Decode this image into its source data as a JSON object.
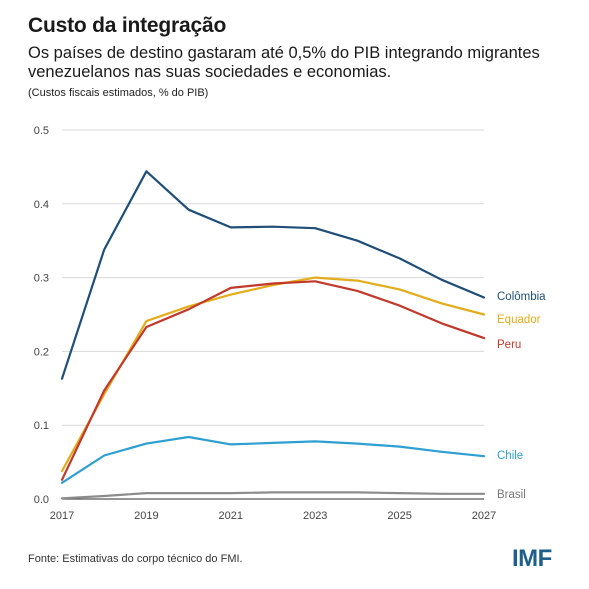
{
  "header": {
    "title": "Custo da integração",
    "subtitle": "Os países de destino gastaram até 0,5% do PIB integrando migrantes venezuelanos nas suas sociedades e economias.",
    "note": "(Custos fiscais estimados, % do PIB)"
  },
  "footer": {
    "source": "Fonte: Estimativas do corpo técnico do FMI.",
    "logo": "IMF"
  },
  "chart_data": {
    "type": "line",
    "x": [
      2017,
      2018,
      2019,
      2020,
      2021,
      2022,
      2023,
      2024,
      2025,
      2026,
      2027
    ],
    "xticks": [
      "2017",
      "2019",
      "2021",
      "2023",
      "2025",
      "2027"
    ],
    "yticks": [
      "0.0",
      "0.1",
      "0.2",
      "0.3",
      "0.4",
      "0.5"
    ],
    "ylim": [
      0,
      0.5
    ],
    "grid": true,
    "series": [
      {
        "name": "Colômbia",
        "color": "#1f4e79",
        "values": [
          0.163,
          0.338,
          0.444,
          0.392,
          0.368,
          0.369,
          0.367,
          0.35,
          0.326,
          0.297,
          0.273
        ]
      },
      {
        "name": "Equador",
        "color": "#e3ac1a",
        "values": [
          0.038,
          0.142,
          0.241,
          0.261,
          0.277,
          0.29,
          0.3,
          0.296,
          0.284,
          0.265,
          0.25
        ]
      },
      {
        "name": "Peru",
        "color": "#c0392b",
        "values": [
          0.026,
          0.147,
          0.233,
          0.257,
          0.286,
          0.292,
          0.295,
          0.282,
          0.262,
          0.238,
          0.218
        ]
      },
      {
        "name": "Chile",
        "color": "#2e9fd1",
        "values": [
          0.022,
          0.059,
          0.075,
          0.084,
          0.074,
          0.076,
          0.078,
          0.075,
          0.071,
          0.064,
          0.058
        ]
      },
      {
        "name": "Brasil",
        "color": "#8c8c8c",
        "values": [
          0.001,
          0.004,
          0.008,
          0.008,
          0.008,
          0.009,
          0.009,
          0.009,
          0.008,
          0.007,
          0.007
        ]
      }
    ]
  }
}
